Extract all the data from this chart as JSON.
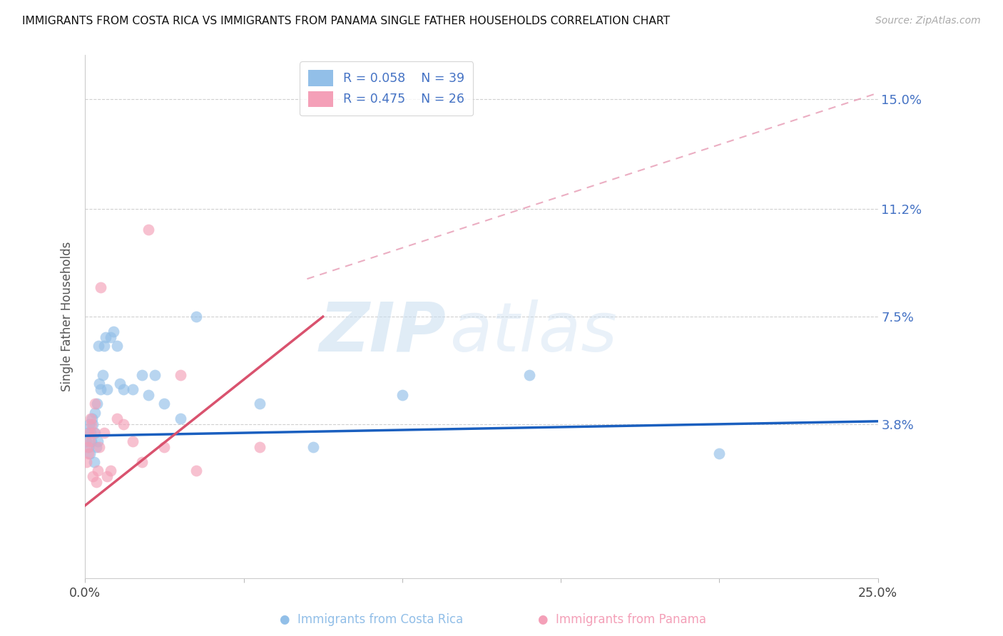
{
  "title": "IMMIGRANTS FROM COSTA RICA VS IMMIGRANTS FROM PANAMA SINGLE FATHER HOUSEHOLDS CORRELATION CHART",
  "source": "Source: ZipAtlas.com",
  "ylabel": "Single Father Households",
  "xlim": [
    0.0,
    25.0
  ],
  "ylim": [
    -1.5,
    16.5
  ],
  "yticks": [
    3.8,
    7.5,
    11.2,
    15.0
  ],
  "xticks": [
    0.0,
    5.0,
    10.0,
    15.0,
    20.0,
    25.0
  ],
  "cr_R": 0.058,
  "cr_N": 39,
  "pa_R": 0.475,
  "pa_N": 26,
  "legend_cr_label": "Immigrants from Costa Rica",
  "legend_pa_label": "Immigrants from Panama",
  "watermark_zip": "ZIP",
  "watermark_atlas": "atlas",
  "cr_color": "#92bfe8",
  "pa_color": "#f4a0b8",
  "cr_line_color": "#1a5fbf",
  "pa_line_color": "#d9526e",
  "pa_dash_color": "#e8a0b8",
  "cr_line_y0": 3.4,
  "cr_line_y1": 3.9,
  "pa_line_x0": 0.0,
  "pa_line_y0": 1.0,
  "pa_line_x1": 7.5,
  "pa_line_y1": 7.5,
  "pa_dash_x0": 7.0,
  "pa_dash_y0": 8.8,
  "pa_dash_x1": 25.0,
  "pa_dash_y1": 15.2,
  "cr_scatter_x": [
    0.05,
    0.08,
    0.1,
    0.12,
    0.15,
    0.18,
    0.2,
    0.22,
    0.25,
    0.28,
    0.3,
    0.32,
    0.35,
    0.38,
    0.4,
    0.45,
    0.5,
    0.55,
    0.6,
    0.65,
    0.7,
    0.8,
    0.9,
    1.0,
    1.1,
    1.2,
    1.5,
    1.8,
    2.0,
    2.2,
    2.5,
    3.0,
    3.5,
    5.5,
    7.2,
    10.0,
    14.0,
    20.0,
    0.42
  ],
  "cr_scatter_y": [
    3.2,
    3.5,
    3.0,
    3.8,
    2.8,
    3.5,
    3.2,
    4.0,
    3.8,
    2.5,
    3.5,
    4.2,
    3.0,
    4.5,
    3.2,
    5.2,
    5.0,
    5.5,
    6.5,
    6.8,
    5.0,
    6.8,
    7.0,
    6.5,
    5.2,
    5.0,
    5.0,
    5.5,
    4.8,
    5.5,
    4.5,
    4.0,
    7.5,
    4.5,
    3.0,
    4.8,
    5.5,
    2.8,
    6.5
  ],
  "pa_scatter_x": [
    0.05,
    0.08,
    0.1,
    0.12,
    0.15,
    0.18,
    0.2,
    0.25,
    0.28,
    0.3,
    0.35,
    0.4,
    0.45,
    0.5,
    0.6,
    0.7,
    0.8,
    1.0,
    1.2,
    1.5,
    1.8,
    2.0,
    2.5,
    3.0,
    3.5,
    5.5
  ],
  "pa_scatter_y": [
    2.5,
    3.0,
    2.8,
    3.5,
    3.2,
    4.0,
    3.8,
    2.0,
    3.5,
    4.5,
    1.8,
    2.2,
    3.0,
    8.5,
    3.5,
    2.0,
    2.2,
    4.0,
    3.8,
    3.2,
    2.5,
    10.5,
    3.0,
    5.5,
    2.2,
    3.0
  ]
}
